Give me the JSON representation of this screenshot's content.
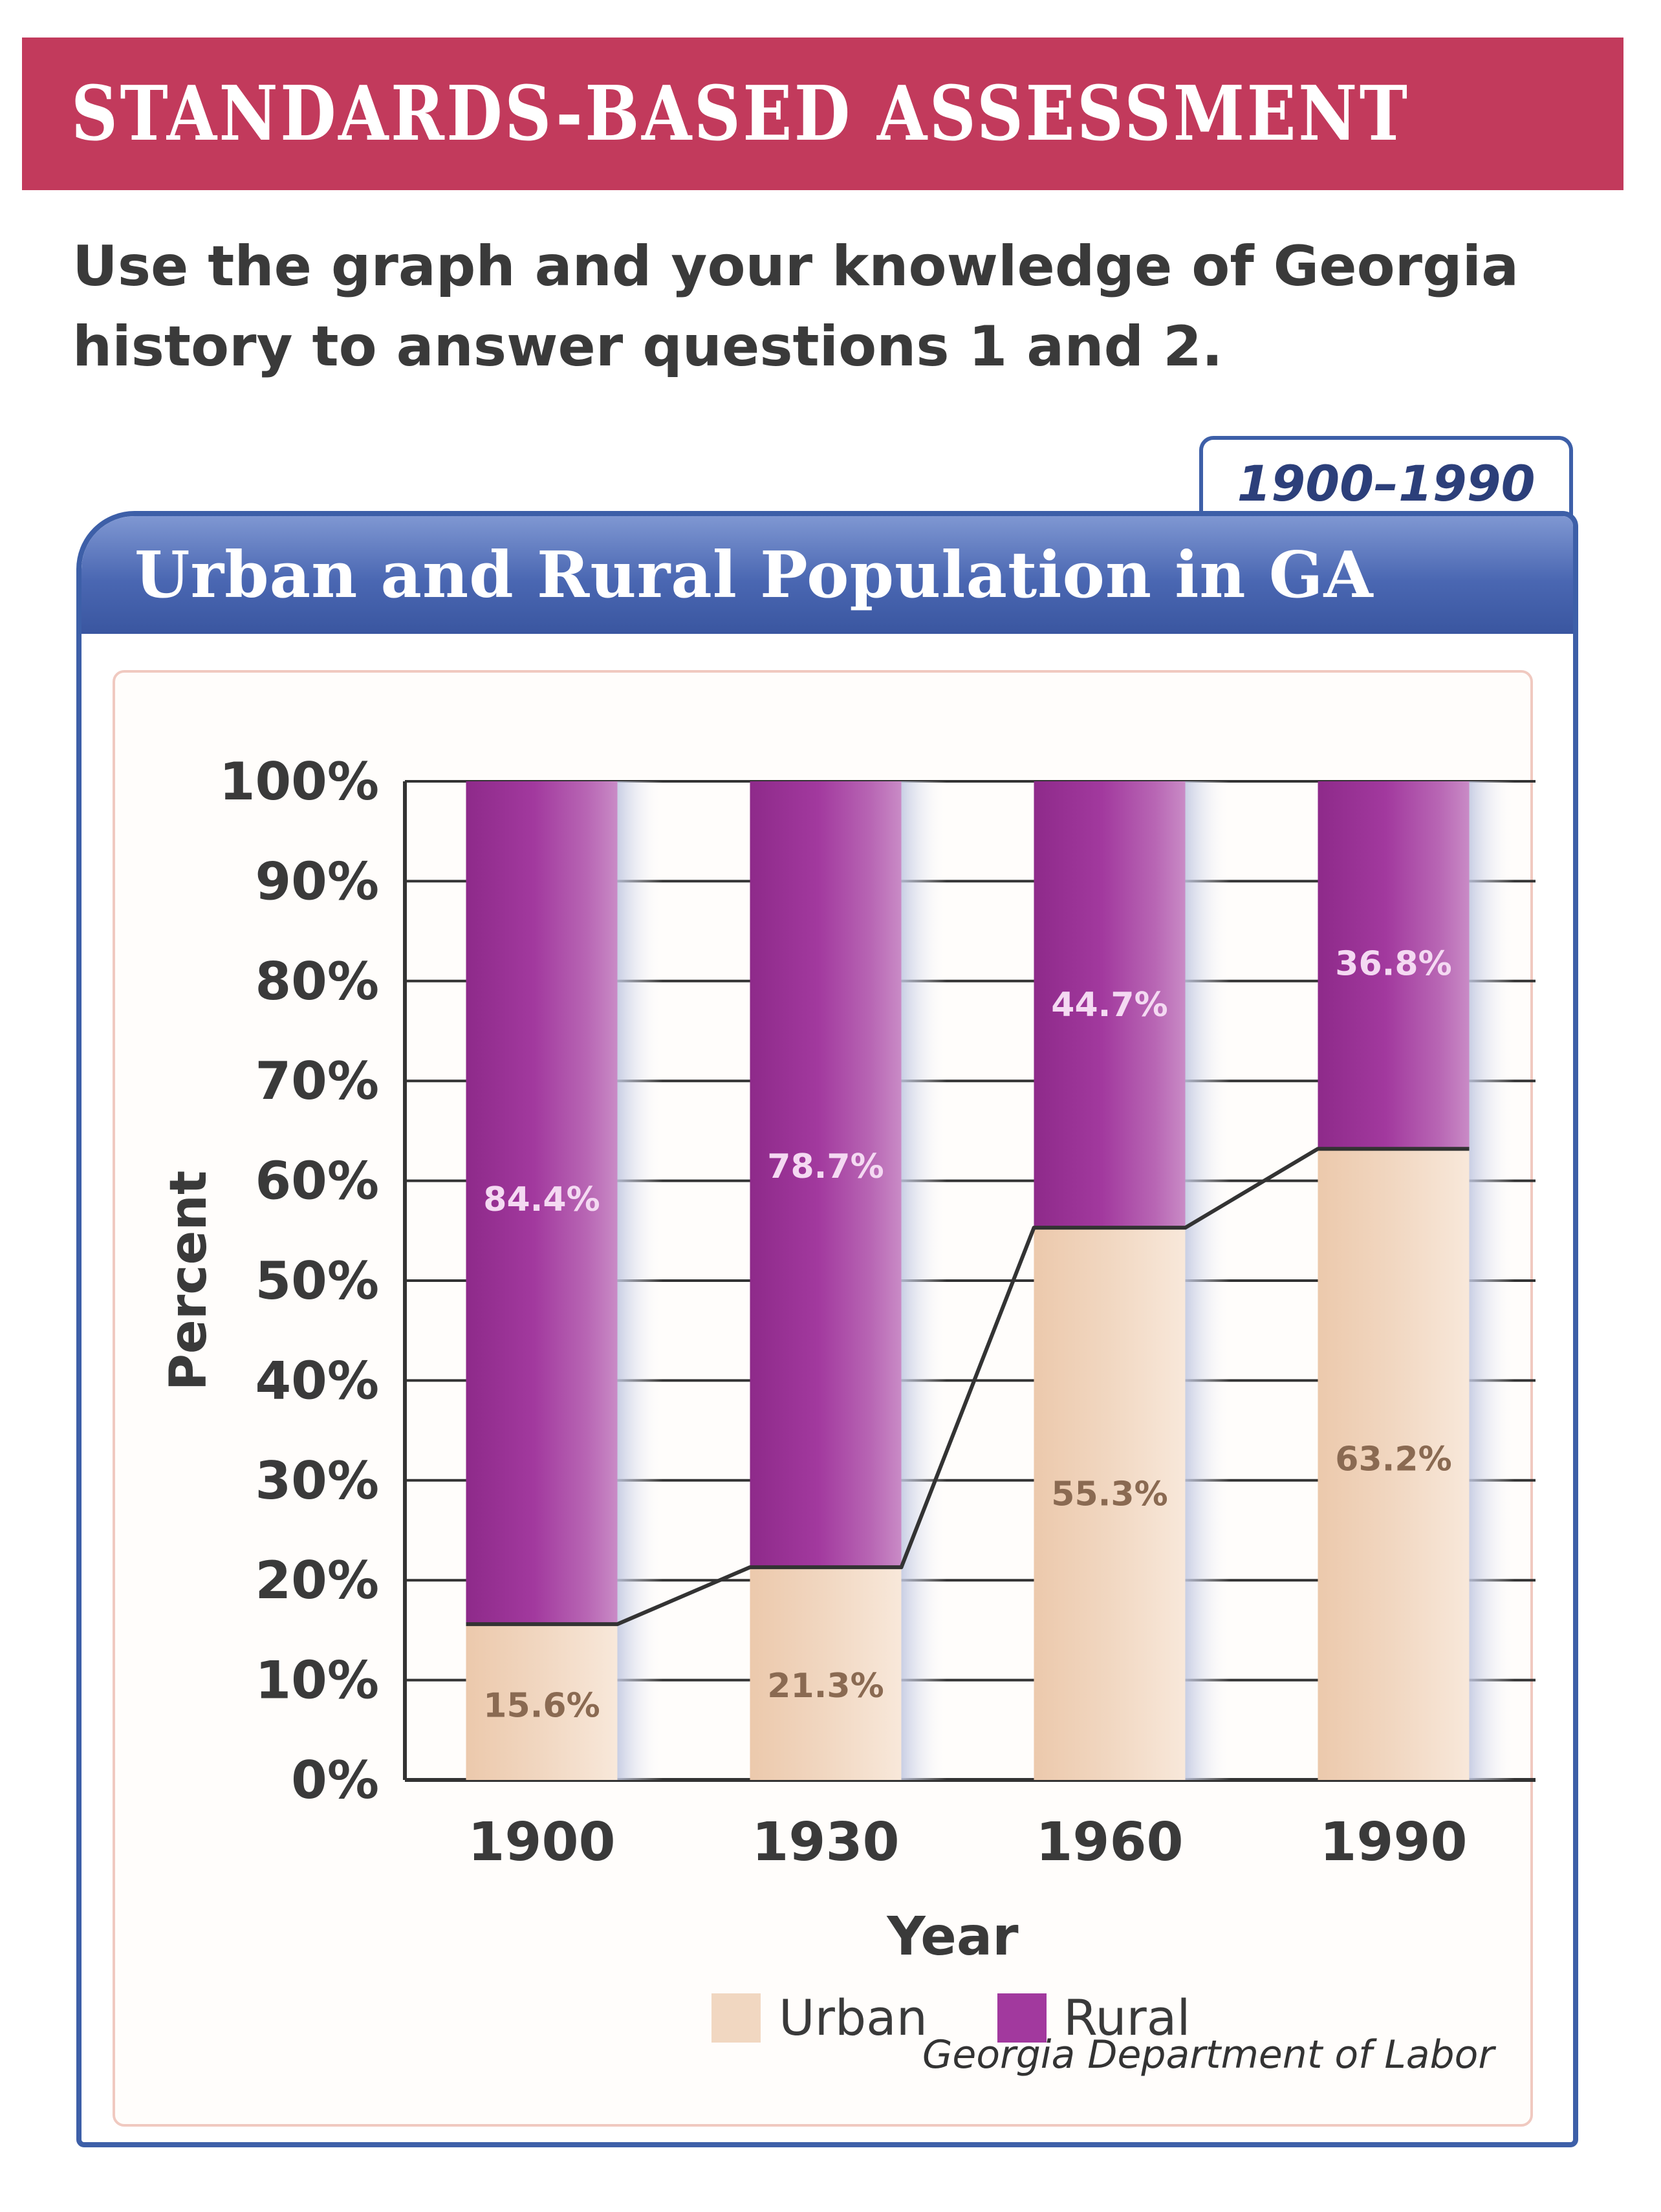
{
  "header": {
    "banner": "STANDARDS-BASED ASSESSMENT",
    "instructions": "Use the graph and your knowledge of Georgia history to answer questions 1 and 2."
  },
  "card": {
    "date_range": "1900–1990",
    "source": "Georgia Department of Labor"
  },
  "colors": {
    "banner": "#c23a5c",
    "frame_blue": "#3d5fa8",
    "urban": "#f1d7c1",
    "rural": "#a2399e",
    "grid": "#333333"
  },
  "chart_data": {
    "type": "bar",
    "stacked": true,
    "title": "Urban and Rural Population in GA",
    "xlabel": "Year",
    "ylabel": "Percent",
    "categories": [
      "1900",
      "1930",
      "1960",
      "1990"
    ],
    "series": [
      {
        "name": "Urban",
        "values": [
          15.6,
          21.3,
          55.3,
          63.2
        ],
        "labels": [
          "15.6%",
          "21.3%",
          "55.3%",
          "63.2%"
        ]
      },
      {
        "name": "Rural",
        "values": [
          84.4,
          78.7,
          44.7,
          36.8
        ],
        "labels": [
          "84.4%",
          "78.7%",
          "44.7%",
          "36.8%"
        ]
      }
    ],
    "yticks": [
      "0%",
      "10%",
      "20%",
      "30%",
      "40%",
      "50%",
      "60%",
      "70%",
      "80%",
      "90%",
      "100%"
    ],
    "ylim": [
      0,
      100
    ],
    "grid": true,
    "trend_line": "Urban",
    "legend": [
      "Urban",
      "Rural"
    ],
    "legend_position": "bottom"
  }
}
